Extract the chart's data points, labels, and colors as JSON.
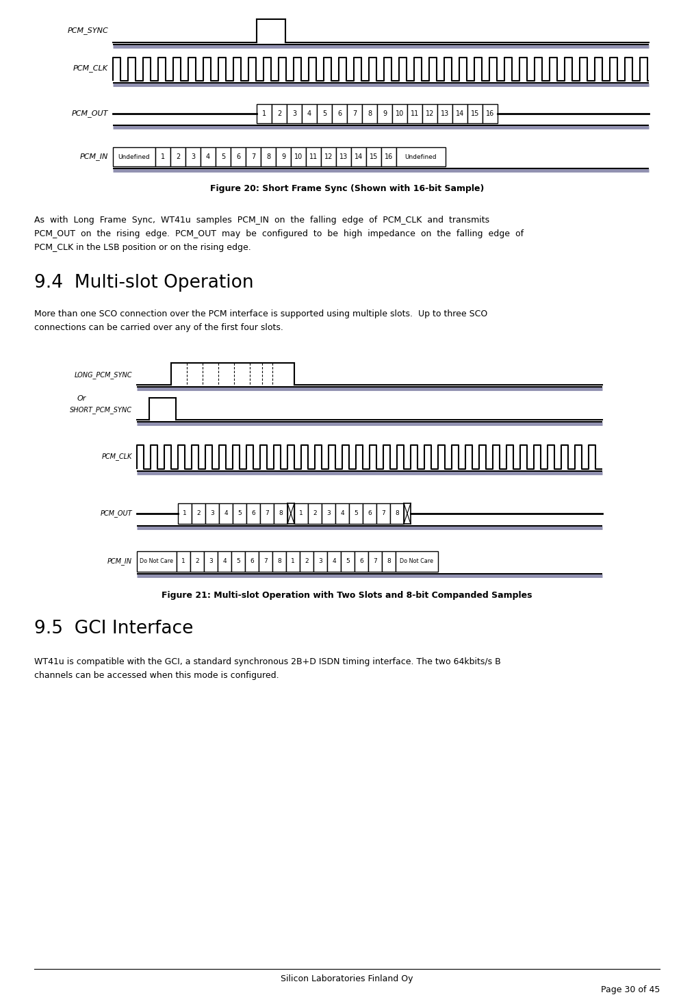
{
  "fig_width": 10.14,
  "fig_height": 14.56,
  "bg_color": "#ffffff",
  "figure20_caption": "Figure 20: Short Frame Sync (Shown with 16-bit Sample)",
  "figure21_caption": "Figure 21: Multi-slot Operation with Two Slots and 8-bit Companded Samples",
  "section94_title": "9.4  Multi-slot Operation",
  "section95_title": "9.5  GCI Interface",
  "para1_line1": "As  with  Long  Frame  Sync,  WT41u  samples  PCM_IN  on  the  falling  edge  of  PCM_CLK  and  transmits",
  "para1_line2": "PCM_OUT  on  the  rising  edge.  PCM_OUT  may  be  configured  to  be  high  impedance  on  the  falling  edge  of",
  "para1_line3": "PCM_CLK in the LSB position or on the rising edge.",
  "para2_line1": "More than one SCO connection over the PCM interface is supported using multiple slots.  Up to three SCO",
  "para2_line2": "connections can be carried over any of the first four slots.",
  "para3_line1": "WT41u is compatible with the GCI, a standard synchronous 2B+D ISDN timing interface. The two 64kbits/s B",
  "para3_line2": "channels can be accessed when this mode is configured.",
  "footer_center": "Silicon Laboratories Finland Oy",
  "footer_right": "Page 30 of 45",
  "shadow_color": "#9090b0"
}
